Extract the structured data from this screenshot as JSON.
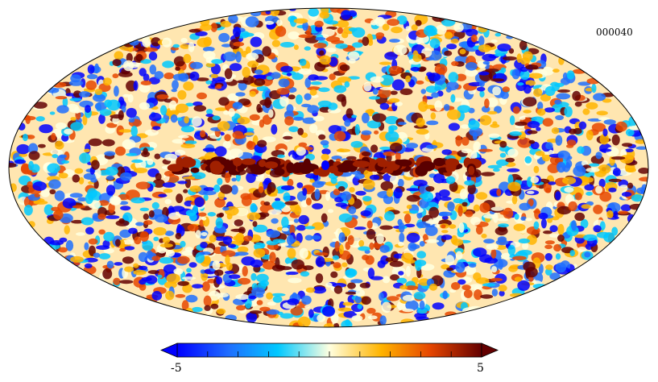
{
  "map": {
    "identifier": "000040",
    "projection": "Mollweide",
    "colormap": [
      "#0000ff",
      "#1e6eff",
      "#00c8ff",
      "#ffffe0",
      "#ffb400",
      "#e64600",
      "#640000"
    ]
  },
  "colorbar": {
    "min_label": "-5",
    "max_label": "5",
    "min_value": -5,
    "max_value": 5,
    "orientation": "horizontal",
    "extend": "both"
  }
}
